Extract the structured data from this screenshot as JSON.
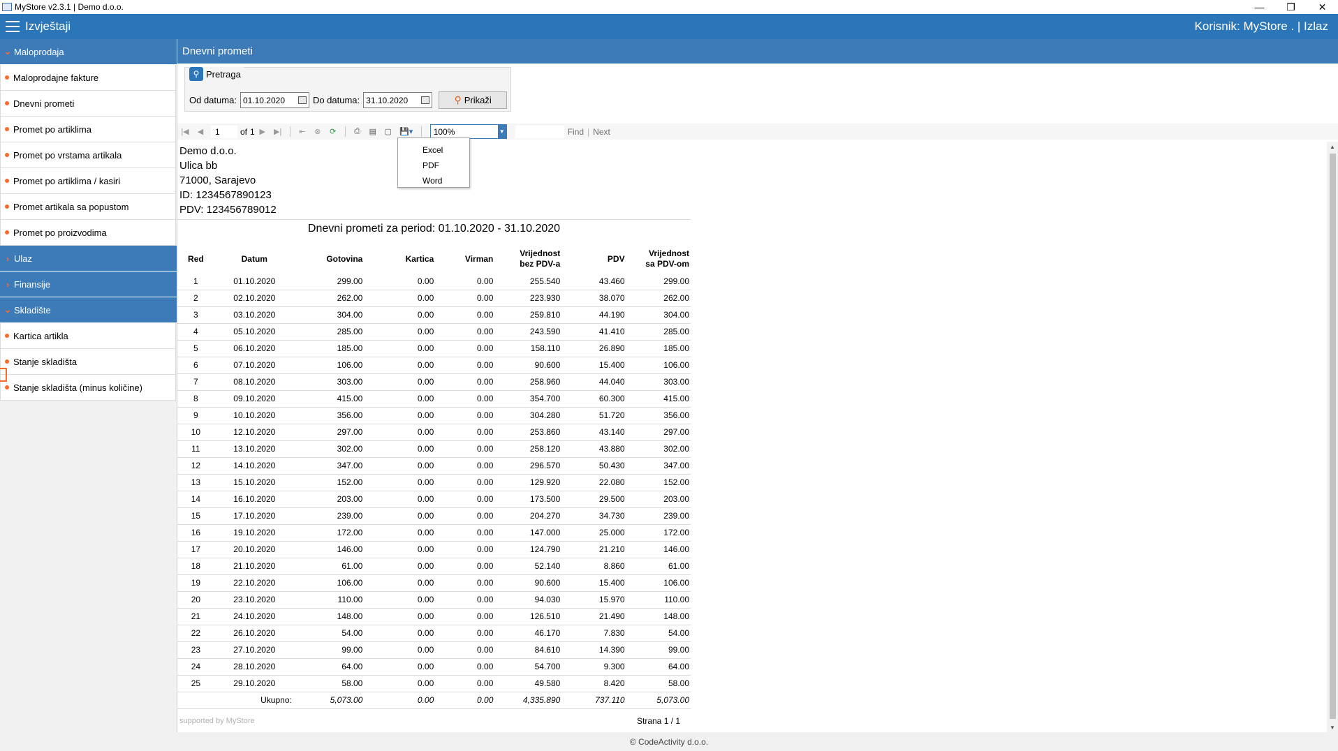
{
  "window": {
    "title": "MyStore v2.3.1 | Demo d.o.o.",
    "minimize": "—",
    "restore": "❐",
    "close": "✕"
  },
  "topbar": {
    "title": "Izvještaji",
    "user": "Korisnik: MyStore . | Izlaz"
  },
  "sidebar": {
    "sections": [
      {
        "label": "Maloprodaja",
        "expanded": true,
        "items": [
          "Maloprodajne fakture",
          "Dnevni prometi",
          "Promet po artiklima",
          "Promet po vrstama artikala",
          "Promet po artiklima / kasiri",
          "Promet artikala sa popustom",
          "Promet po proizvodima"
        ]
      },
      {
        "label": "Ulaz",
        "expanded": false,
        "items": []
      },
      {
        "label": "Finansije",
        "expanded": false,
        "items": []
      },
      {
        "label": "Skladište",
        "expanded": true,
        "items": [
          "Kartica artikla",
          "Stanje skladišta",
          "Stanje skladišta (minus količine)"
        ]
      }
    ]
  },
  "content_title": "Dnevni prometi",
  "search": {
    "legend": "Pretraga",
    "from_label": "Od datuma:",
    "from_value": "01.10.2020",
    "to_label": "Do datuma:",
    "to_value": "31.10.2020",
    "show_button": "Prikaži"
  },
  "toolbar": {
    "page": "1",
    "of_label": "of",
    "total_pages": "1",
    "zoom": "100%",
    "find": "Find",
    "next": "Next"
  },
  "export_menu": [
    "Excel",
    "PDF",
    "Word"
  ],
  "report": {
    "company": [
      "Demo d.o.o.",
      "Ulica bb",
      "71000, Sarajevo",
      "ID: 1234567890123",
      "PDV: 123456789012"
    ],
    "title": "Dnevni prometi za period: 01.10.2020 - 31.10.2020",
    "columns": [
      "Red",
      "Datum",
      "Gotovina",
      "Kartica",
      "Virman",
      "Vrijednost\nbez PDV-a",
      "PDV",
      "Vrijednost\nsa PDV-om"
    ],
    "rows": [
      [
        "1",
        "01.10.2020",
        "299.00",
        "0.00",
        "0.00",
        "255.540",
        "43.460",
        "299.00"
      ],
      [
        "2",
        "02.10.2020",
        "262.00",
        "0.00",
        "0.00",
        "223.930",
        "38.070",
        "262.00"
      ],
      [
        "3",
        "03.10.2020",
        "304.00",
        "0.00",
        "0.00",
        "259.810",
        "44.190",
        "304.00"
      ],
      [
        "4",
        "05.10.2020",
        "285.00",
        "0.00",
        "0.00",
        "243.590",
        "41.410",
        "285.00"
      ],
      [
        "5",
        "06.10.2020",
        "185.00",
        "0.00",
        "0.00",
        "158.110",
        "26.890",
        "185.00"
      ],
      [
        "6",
        "07.10.2020",
        "106.00",
        "0.00",
        "0.00",
        "90.600",
        "15.400",
        "106.00"
      ],
      [
        "7",
        "08.10.2020",
        "303.00",
        "0.00",
        "0.00",
        "258.960",
        "44.040",
        "303.00"
      ],
      [
        "8",
        "09.10.2020",
        "415.00",
        "0.00",
        "0.00",
        "354.700",
        "60.300",
        "415.00"
      ],
      [
        "9",
        "10.10.2020",
        "356.00",
        "0.00",
        "0.00",
        "304.280",
        "51.720",
        "356.00"
      ],
      [
        "10",
        "12.10.2020",
        "297.00",
        "0.00",
        "0.00",
        "253.860",
        "43.140",
        "297.00"
      ],
      [
        "11",
        "13.10.2020",
        "302.00",
        "0.00",
        "0.00",
        "258.120",
        "43.880",
        "302.00"
      ],
      [
        "12",
        "14.10.2020",
        "347.00",
        "0.00",
        "0.00",
        "296.570",
        "50.430",
        "347.00"
      ],
      [
        "13",
        "15.10.2020",
        "152.00",
        "0.00",
        "0.00",
        "129.920",
        "22.080",
        "152.00"
      ],
      [
        "14",
        "16.10.2020",
        "203.00",
        "0.00",
        "0.00",
        "173.500",
        "29.500",
        "203.00"
      ],
      [
        "15",
        "17.10.2020",
        "239.00",
        "0.00",
        "0.00",
        "204.270",
        "34.730",
        "239.00"
      ],
      [
        "16",
        "19.10.2020",
        "172.00",
        "0.00",
        "0.00",
        "147.000",
        "25.000",
        "172.00"
      ],
      [
        "17",
        "20.10.2020",
        "146.00",
        "0.00",
        "0.00",
        "124.790",
        "21.210",
        "146.00"
      ],
      [
        "18",
        "21.10.2020",
        "61.00",
        "0.00",
        "0.00",
        "52.140",
        "8.860",
        "61.00"
      ],
      [
        "19",
        "22.10.2020",
        "106.00",
        "0.00",
        "0.00",
        "90.600",
        "15.400",
        "106.00"
      ],
      [
        "20",
        "23.10.2020",
        "110.00",
        "0.00",
        "0.00",
        "94.030",
        "15.970",
        "110.00"
      ],
      [
        "21",
        "24.10.2020",
        "148.00",
        "0.00",
        "0.00",
        "126.510",
        "21.490",
        "148.00"
      ],
      [
        "22",
        "26.10.2020",
        "54.00",
        "0.00",
        "0.00",
        "46.170",
        "7.830",
        "54.00"
      ],
      [
        "23",
        "27.10.2020",
        "99.00",
        "0.00",
        "0.00",
        "84.610",
        "14.390",
        "99.00"
      ],
      [
        "24",
        "28.10.2020",
        "64.00",
        "0.00",
        "0.00",
        "54.700",
        "9.300",
        "64.00"
      ],
      [
        "25",
        "29.10.2020",
        "58.00",
        "0.00",
        "0.00",
        "49.580",
        "8.420",
        "58.00"
      ]
    ],
    "total_label": "Ukupno:",
    "totals": [
      "5,073.00",
      "0.00",
      "0.00",
      "4,335.890",
      "737.110",
      "5,073.00"
    ],
    "supported": "supported by MyStore",
    "page_footer": "Strana 1 / 1"
  },
  "footer": "© CodeActivity d.o.o.",
  "colors": {
    "accent": "#2b76b8",
    "section": "#3d7ab8",
    "bullet": "#ff6a2a"
  }
}
